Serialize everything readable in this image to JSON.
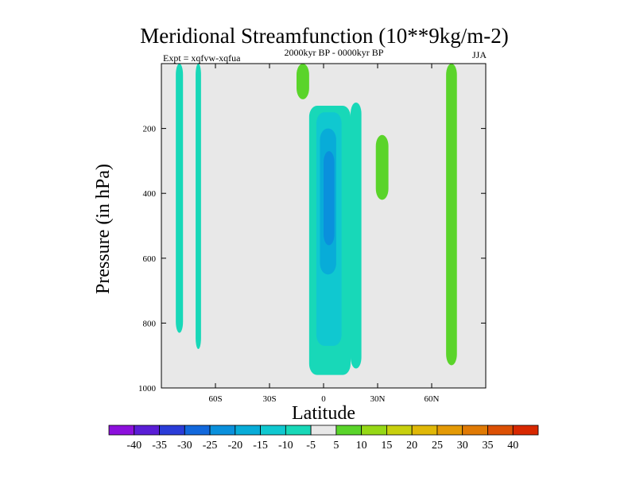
{
  "chart_data": {
    "type": "contour",
    "title": "Meridional Streamfunction (10**9kg/m-2)",
    "experiment": "Expt = xqfvw-xqfua",
    "subtitle": "2000kyr BP - 0000kyr BP",
    "season": "JJA",
    "xlabel": "Latitude",
    "ylabel": "Pressure (in hPa)",
    "xlim": [
      -90,
      90
    ],
    "ylim": [
      1000,
      0
    ],
    "x_ticks": [
      {
        "value": -60,
        "label": "60S"
      },
      {
        "value": -30,
        "label": "30S"
      },
      {
        "value": 0,
        "label": "0"
      },
      {
        "value": 30,
        "label": "30N"
      },
      {
        "value": 60,
        "label": "60N"
      }
    ],
    "y_ticks": [
      {
        "value": 200,
        "label": "200"
      },
      {
        "value": 400,
        "label": "400"
      },
      {
        "value": 600,
        "label": "600"
      },
      {
        "value": 800,
        "label": "800"
      },
      {
        "value": 1000,
        "label": "1000"
      }
    ],
    "background_level": {
      "min": -5,
      "max": 5,
      "color": "#e8e8e8"
    },
    "levels": [
      {
        "label": "-40",
        "color": "#8c10dc"
      },
      {
        "label": "-35",
        "color": "#5a1ed6"
      },
      {
        "label": "-30",
        "color": "#2a3cd8"
      },
      {
        "label": "-25",
        "color": "#1268dc"
      },
      {
        "label": "-20",
        "color": "#0a90dc"
      },
      {
        "label": "-15",
        "color": "#08acd8"
      },
      {
        "label": "-10",
        "color": "#10c8d0"
      },
      {
        "label": "-5",
        "color": "#18d8b8"
      },
      {
        "label": "5",
        "color": "#e8e8e8"
      },
      {
        "label": "10",
        "color": "#5ad42a"
      },
      {
        "label": "15",
        "color": "#96d816"
      },
      {
        "label": "20",
        "color": "#c8d00e"
      },
      {
        "label": "25",
        "color": "#e0b808"
      },
      {
        "label": "30",
        "color": "#e49a06"
      },
      {
        "label": "35",
        "color": "#e07a04"
      },
      {
        "label": "40",
        "color": "#dc5004"
      }
    ],
    "end_color": "#d82800",
    "features": [
      {
        "name": "southern-negative-band-1",
        "sign": "negative",
        "level": -5,
        "lat_range": [
          -82,
          -78
        ],
        "p_range": [
          0,
          830
        ]
      },
      {
        "name": "southern-negative-band-2",
        "sign": "negative",
        "level": -5,
        "lat_range": [
          -71,
          -68
        ],
        "p_range": [
          0,
          880
        ]
      },
      {
        "name": "upper-positive-strip",
        "sign": "positive",
        "level": 10,
        "lat_range": [
          -15,
          -8
        ],
        "p_range": [
          0,
          110
        ]
      },
      {
        "name": "equatorial-negative-cell",
        "sign": "negative",
        "level": -5,
        "lat_range": [
          -8,
          15
        ],
        "p_range": [
          130,
          960
        ]
      },
      {
        "name": "equatorial-negative-cell-core-10",
        "sign": "negative",
        "level": -10,
        "lat_range": [
          -4,
          10
        ],
        "p_range": [
          150,
          870
        ]
      },
      {
        "name": "equatorial-negative-cell-core-15",
        "sign": "negative",
        "level": -15,
        "lat_range": [
          -2,
          7
        ],
        "p_range": [
          200,
          650
        ]
      },
      {
        "name": "equatorial-negative-cell-core-20",
        "sign": "negative",
        "level": -20,
        "lat_range": [
          0,
          6
        ],
        "p_range": [
          270,
          560
        ]
      },
      {
        "name": "subtropical-negative-arm",
        "sign": "negative",
        "level": -5,
        "lat_range": [
          15,
          21
        ],
        "p_range": [
          120,
          940
        ]
      },
      {
        "name": "subtropical-positive-cell",
        "sign": "positive",
        "level": 10,
        "lat_range": [
          29,
          36
        ],
        "p_range": [
          220,
          420
        ]
      },
      {
        "name": "northern-positive-band",
        "sign": "positive",
        "level": 10,
        "lat_range": [
          68,
          74
        ],
        "p_range": [
          0,
          930
        ]
      }
    ]
  }
}
